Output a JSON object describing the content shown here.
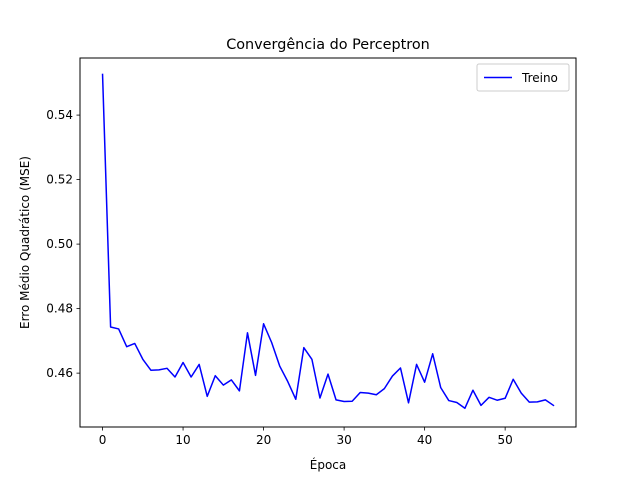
{
  "chart_data": {
    "type": "line",
    "title": "Convergência do Perceptron",
    "xlabel": "Época",
    "ylabel": "Erro Médio Quadrático (MSE)",
    "xlim": [
      -2.8,
      58.8
    ],
    "ylim": [
      0.4433,
      0.5577
    ],
    "xticks": [
      0,
      10,
      20,
      30,
      40,
      50
    ],
    "yticks": [
      0.46,
      0.48,
      0.5,
      0.52,
      0.54
    ],
    "ytick_labels": [
      "0.46",
      "0.48",
      "0.50",
      "0.52",
      "0.54"
    ],
    "grid": false,
    "legend_position": "top-right",
    "series": [
      {
        "name": "Treino",
        "color": "#0000ff",
        "x": [
          0,
          1,
          2,
          3,
          4,
          5,
          6,
          7,
          8,
          9,
          10,
          11,
          12,
          13,
          14,
          15,
          16,
          17,
          18,
          19,
          20,
          21,
          22,
          23,
          24,
          25,
          26,
          27,
          28,
          29,
          30,
          31,
          32,
          33,
          34,
          35,
          36,
          37,
          38,
          39,
          40,
          41,
          42,
          43,
          44,
          45,
          46,
          47,
          48,
          49,
          50,
          51,
          52,
          53,
          54,
          55,
          56
        ],
        "values": [
          0.5526,
          0.4743,
          0.4737,
          0.4682,
          0.4692,
          0.4643,
          0.4609,
          0.461,
          0.4615,
          0.4588,
          0.4633,
          0.4588,
          0.4627,
          0.4528,
          0.4592,
          0.4563,
          0.4579,
          0.4545,
          0.4725,
          0.4593,
          0.4753,
          0.4695,
          0.4622,
          0.4574,
          0.4519,
          0.4679,
          0.4643,
          0.4523,
          0.4597,
          0.4517,
          0.4512,
          0.4513,
          0.454,
          0.4538,
          0.4533,
          0.4552,
          0.4591,
          0.4616,
          0.4508,
          0.4627,
          0.4572,
          0.466,
          0.4555,
          0.4515,
          0.4509,
          0.4491,
          0.4547,
          0.45,
          0.4525,
          0.4516,
          0.4522,
          0.4581,
          0.4538,
          0.451,
          0.4511,
          0.4517,
          0.45
        ]
      }
    ]
  }
}
